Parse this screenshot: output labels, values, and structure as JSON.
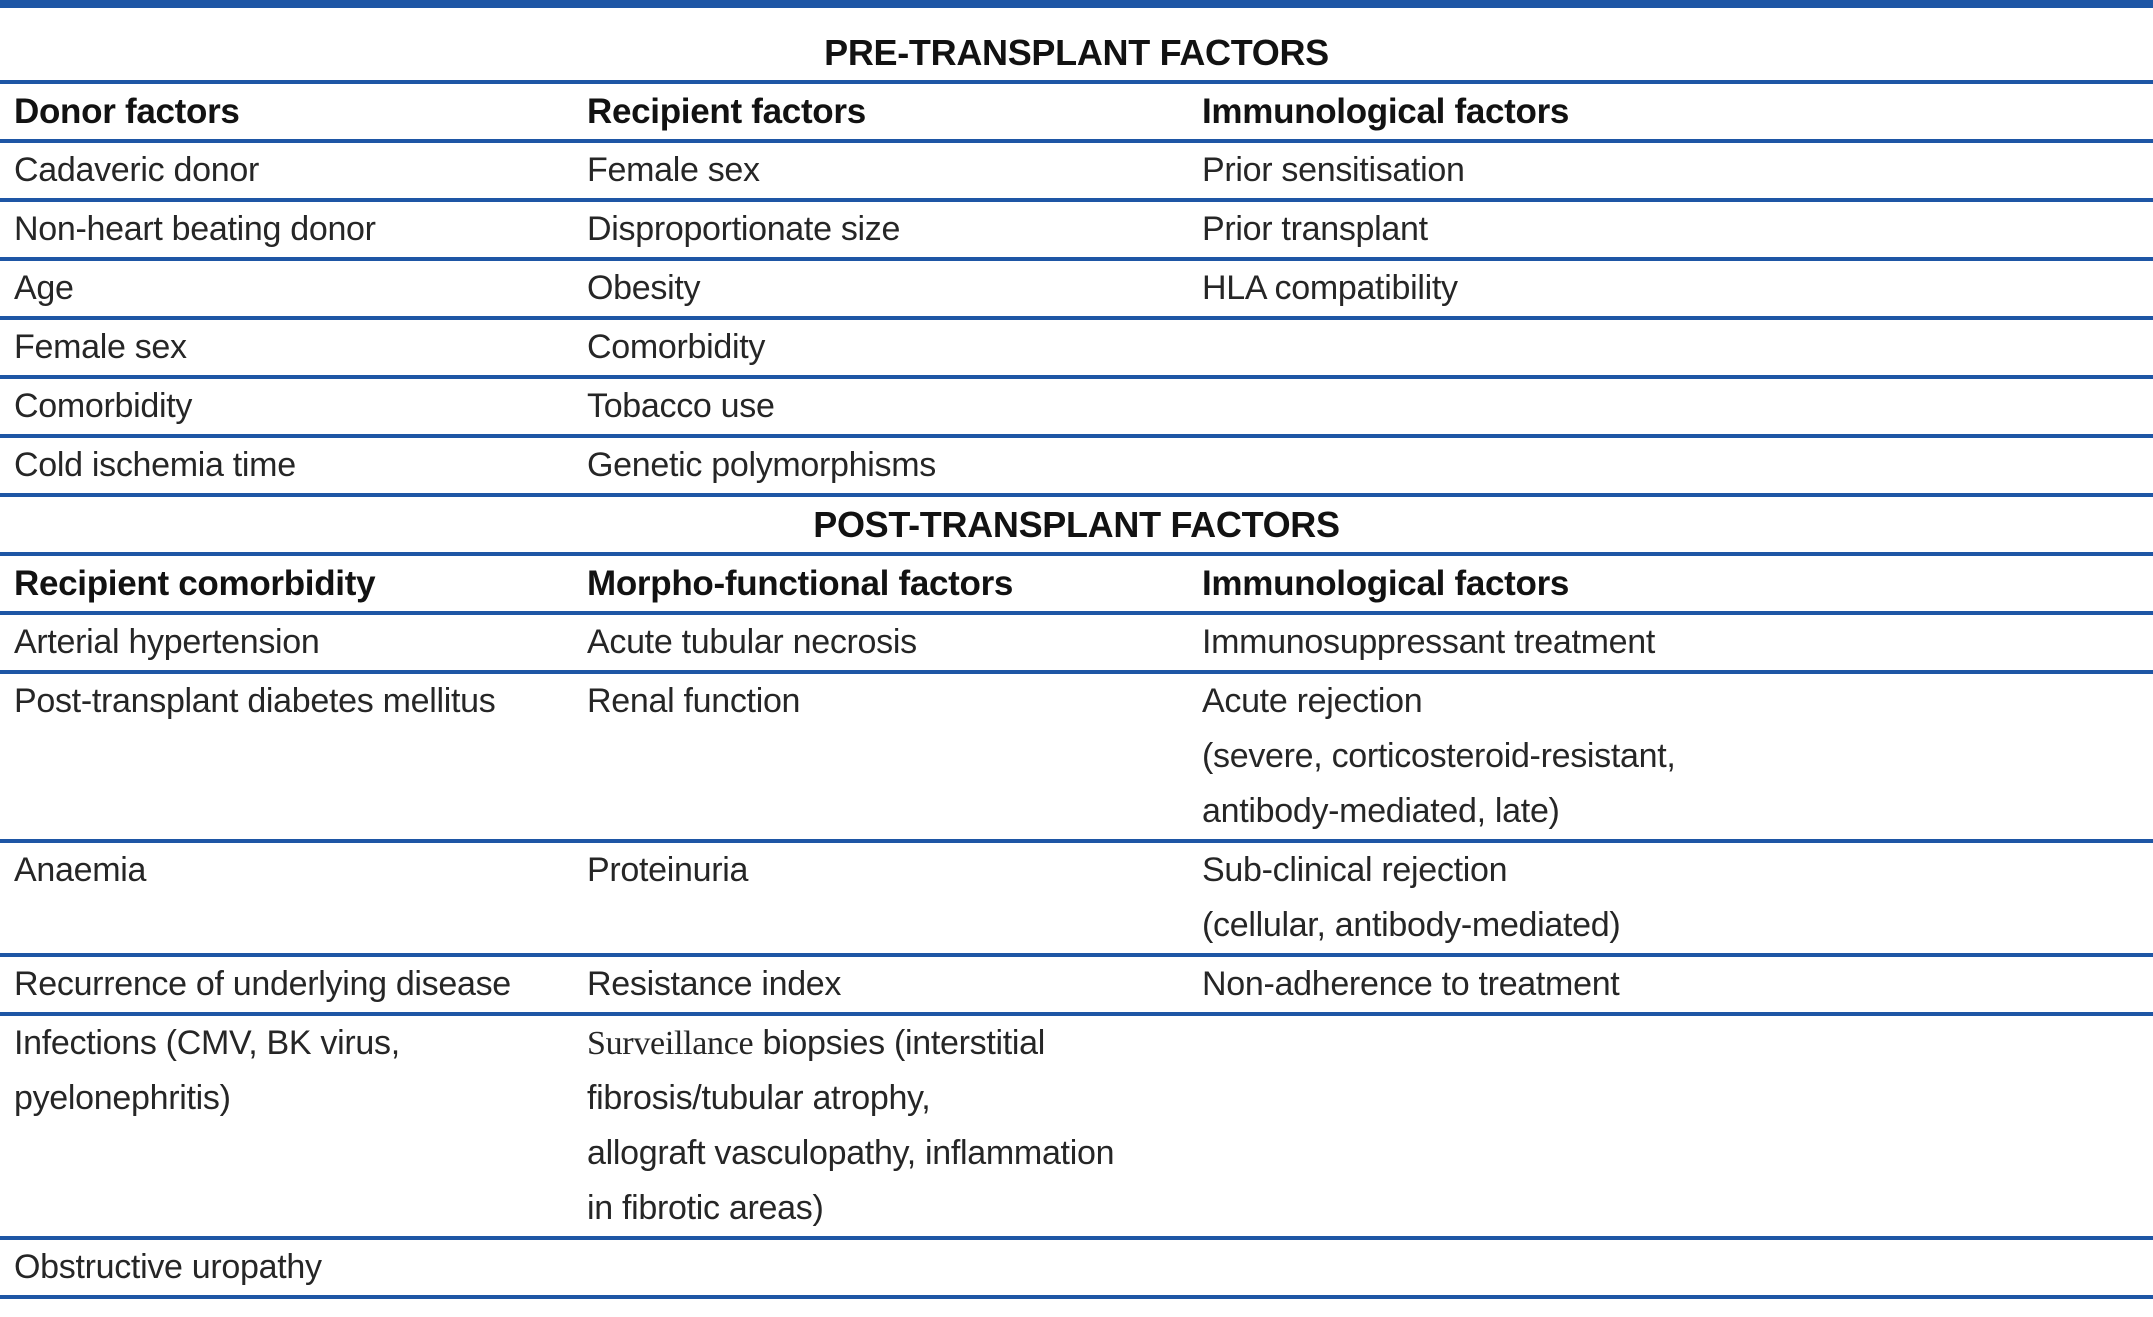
{
  "page": {
    "background": "#ffffff"
  },
  "colors": {
    "rule_blue": "#1e56a5",
    "body_text": "#262626",
    "heading_text": "#121212"
  },
  "table": {
    "sections": [
      {
        "title": "PRE-TRANSPLANT FACTORS",
        "headers": [
          "Donor factors",
          "Recipient factors",
          "Immunological factors"
        ],
        "rows": [
          [
            "Cadaveric donor",
            "Female sex",
            "Prior sensitisation"
          ],
          [
            "Non-heart beating donor",
            "Disproportionate size",
            "Prior transplant"
          ],
          [
            "Age",
            "Obesity",
            "HLA compatibility"
          ],
          [
            "Female sex",
            "Comorbidity",
            ""
          ],
          [
            "Comorbidity",
            "Tobacco use",
            ""
          ],
          [
            "Cold ischemia time",
            "Genetic polymorphisms",
            ""
          ]
        ]
      },
      {
        "title": "POST-TRANSPLANT FACTORS",
        "headers": [
          "Recipient comorbidity",
          "Morpho-functional factors",
          "Immunological factors"
        ],
        "rows": [
          [
            "Arterial hypertension",
            "Acute tubular necrosis",
            "Immunosuppressant treatment"
          ],
          [
            "Post-transplant diabetes mellitus",
            "Renal function",
            {
              "lines": [
                "Acute rejection",
                "(severe, corticosteroid-resistant,",
                "antibody-mediated, late)"
              ]
            }
          ],
          [
            "Anaemia",
            "Proteinuria",
            {
              "lines": [
                "Sub-clinical rejection",
                "(cellular, antibody-mediated)"
              ]
            }
          ],
          [
            "Recurrence of underlying disease",
            "Resistance index",
            "Non-adherence to treatment"
          ],
          [
            {
              "lines": [
                "Infections (CMV, BK virus,",
                "pyelonephritis)"
              ]
            },
            {
              "lines": [
                [
                  {
                    "text": "Surveillance",
                    "serif": true
                  },
                  {
                    "text": " biopsies (interstitial"
                  }
                ],
                "fibrosis/tubular atrophy,",
                "allograft vasculopathy, inflammation",
                "in fibrotic areas)"
              ]
            },
            ""
          ],
          [
            "Obstructive uropathy",
            "",
            ""
          ]
        ]
      }
    ]
  }
}
